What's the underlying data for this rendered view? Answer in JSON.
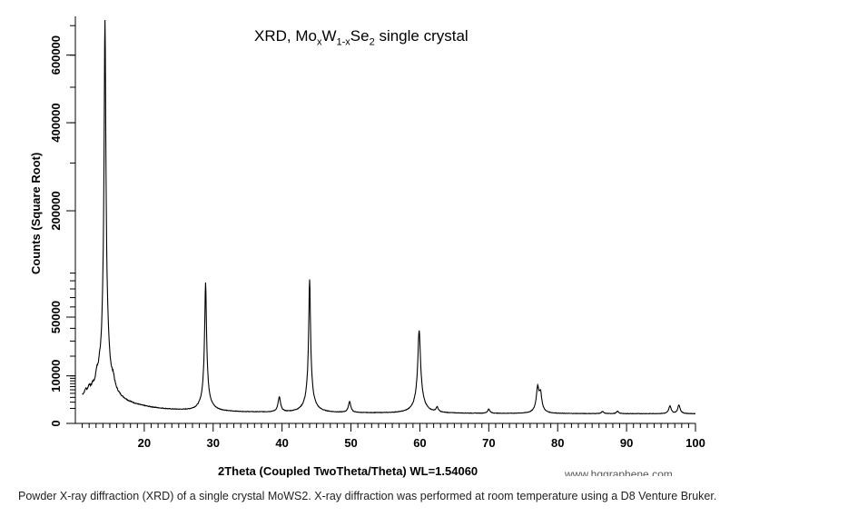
{
  "chart_data": {
    "type": "line",
    "title": "XRD, MoxW1-xSe2 single crystal",
    "title_parts": {
      "a": "XRD, Mo",
      "b": "x",
      "c": "W",
      "d": "1-x",
      "e": "Se",
      "f": "2",
      "g": " single crystal"
    },
    "xlabel": "2Theta (Coupled TwoTheta/Theta) WL=1.54060",
    "ylabel": "Counts (Square Root)",
    "y_scale": "sqrt",
    "xlim": [
      10,
      100
    ],
    "ylim": [
      0,
      720000
    ],
    "x_ticks": [
      20,
      30,
      40,
      50,
      60,
      70,
      80,
      90,
      100
    ],
    "y_ticks": [
      0,
      10000,
      50000,
      200000,
      400000,
      600000
    ],
    "y_tick_labels": [
      "0",
      "10000",
      "50000",
      "200000",
      "400000",
      "600000"
    ],
    "series_color": "#000000",
    "peaks": [
      {
        "x": 11.5,
        "y": 1300
      },
      {
        "x": 12.0,
        "y": 2000
      },
      {
        "x": 12.5,
        "y": 1500
      },
      {
        "x": 13.1,
        "y": 4200
      },
      {
        "x": 13.5,
        "y": 3000
      },
      {
        "x": 14.3,
        "y": 720000
      },
      {
        "x": 15.5,
        "y": 3000
      },
      {
        "x": 28.9,
        "y": 90000
      },
      {
        "x": 39.6,
        "y": 2500
      },
      {
        "x": 44.0,
        "y": 90000
      },
      {
        "x": 49.8,
        "y": 1600
      },
      {
        "x": 59.9,
        "y": 39000
      },
      {
        "x": 62.5,
        "y": 600
      },
      {
        "x": 70.0,
        "y": 450
      },
      {
        "x": 77.1,
        "y": 5600
      },
      {
        "x": 77.5,
        "y": 3800
      },
      {
        "x": 86.5,
        "y": 200
      },
      {
        "x": 88.7,
        "y": 230
      },
      {
        "x": 96.3,
        "y": 950
      },
      {
        "x": 97.6,
        "y": 1100
      }
    ]
  },
  "watermark": "www.hqgraphene.com",
  "caption": "Powder X-ray diffraction (XRD) of a single crystal MoWS2. X-ray diffraction was performed at room temperature using a D8 Venture Bruker."
}
